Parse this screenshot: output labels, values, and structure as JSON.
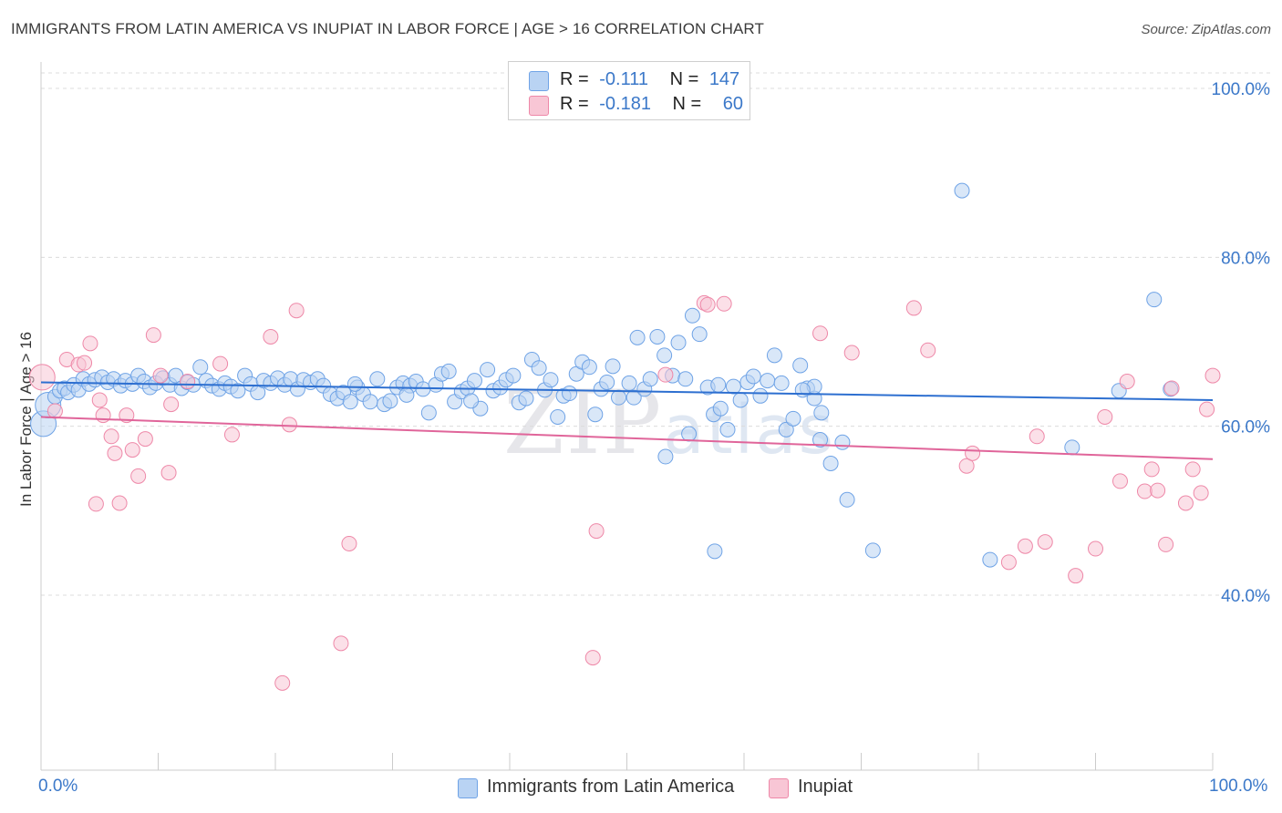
{
  "title": "IMMIGRANTS FROM LATIN AMERICA VS INUPIAT IN LABOR FORCE | AGE > 16 CORRELATION CHART",
  "source": "Source: ZipAtlas.com",
  "watermark": {
    "zip": "ZIP",
    "atlas": "atlas"
  },
  "legend": {
    "r_label": "R =",
    "n_label": "N =",
    "items": [
      {
        "name": "Immigrants from Latin America",
        "r": "-0.111",
        "n": "147",
        "color": "#6fa3e6",
        "fill": "#b9d3f3"
      },
      {
        "name": "Inupiat",
        "r": "-0.181",
        "n": "60",
        "color": "#ee88a8",
        "fill": "#f8c6d5"
      }
    ]
  },
  "chart_data": {
    "type": "scatter",
    "xlabel": "",
    "ylabel": "In Labor Force | Age > 16",
    "xlim": [
      0,
      100
    ],
    "ylim": [
      20,
      100
    ],
    "x_tick_labels": [
      "0.0%",
      "100.0%"
    ],
    "y_ticks": [
      {
        "value": 100,
        "label": "100.0%"
      },
      {
        "value": 80,
        "label": "80.0%"
      },
      {
        "value": 60,
        "label": "60.0%"
      },
      {
        "value": 40,
        "label": "40.0%"
      }
    ],
    "grid": true,
    "legend_position": "top-center",
    "series": [
      {
        "name": "Immigrants from Latin America",
        "color": "#6fa3e6",
        "trend": {
          "x": [
            0,
            100
          ],
          "y": [
            65.2,
            63.1
          ]
        },
        "points": [
          [
            0.2,
            60.3
          ],
          [
            0.6,
            62.5
          ],
          [
            1.2,
            63.5
          ],
          [
            1.6,
            64.2
          ],
          [
            2.0,
            64.5
          ],
          [
            2.3,
            64.0
          ],
          [
            2.8,
            64.9
          ],
          [
            3.2,
            64.3
          ],
          [
            3.6,
            65.6
          ],
          [
            4.1,
            65.0
          ],
          [
            4.6,
            65.5
          ],
          [
            5.2,
            65.8
          ],
          [
            5.7,
            65.2
          ],
          [
            6.2,
            65.6
          ],
          [
            6.8,
            64.8
          ],
          [
            7.2,
            65.4
          ],
          [
            7.8,
            65.0
          ],
          [
            8.3,
            66.0
          ],
          [
            8.8,
            65.3
          ],
          [
            9.3,
            64.6
          ],
          [
            9.8,
            65.1
          ],
          [
            10.4,
            65.7
          ],
          [
            11.0,
            64.9
          ],
          [
            11.5,
            66.0
          ],
          [
            12.0,
            64.5
          ],
          [
            12.5,
            65.2
          ],
          [
            13.0,
            64.9
          ],
          [
            13.6,
            67.0
          ],
          [
            14.1,
            65.4
          ],
          [
            14.6,
            64.8
          ],
          [
            15.2,
            64.4
          ],
          [
            15.7,
            65.1
          ],
          [
            16.2,
            64.7
          ],
          [
            16.8,
            64.2
          ],
          [
            17.4,
            66.0
          ],
          [
            17.9,
            65.0
          ],
          [
            18.5,
            64.0
          ],
          [
            19.0,
            65.4
          ],
          [
            19.6,
            65.1
          ],
          [
            20.2,
            65.7
          ],
          [
            20.8,
            64.9
          ],
          [
            21.3,
            65.6
          ],
          [
            21.9,
            64.4
          ],
          [
            22.4,
            65.5
          ],
          [
            23.0,
            65.2
          ],
          [
            23.6,
            65.6
          ],
          [
            24.1,
            64.8
          ],
          [
            24.7,
            63.8
          ],
          [
            25.3,
            63.3
          ],
          [
            25.8,
            64.0
          ],
          [
            26.4,
            62.9
          ],
          [
            27.0,
            64.6
          ],
          [
            27.5,
            63.8
          ],
          [
            28.1,
            62.9
          ],
          [
            28.7,
            65.6
          ],
          [
            29.3,
            62.6
          ],
          [
            29.8,
            63.0
          ],
          [
            30.4,
            64.6
          ],
          [
            30.9,
            65.1
          ],
          [
            31.5,
            64.8
          ],
          [
            32.0,
            65.3
          ],
          [
            32.6,
            64.4
          ],
          [
            33.1,
            61.6
          ],
          [
            33.7,
            64.9
          ],
          [
            34.2,
            66.2
          ],
          [
            34.8,
            66.5
          ],
          [
            35.3,
            62.9
          ],
          [
            35.9,
            64.1
          ],
          [
            36.4,
            64.5
          ],
          [
            37.0,
            65.4
          ],
          [
            37.5,
            62.1
          ],
          [
            38.1,
            66.7
          ],
          [
            38.6,
            64.2
          ],
          [
            39.2,
            64.6
          ],
          [
            39.7,
            65.5
          ],
          [
            40.3,
            66.0
          ],
          [
            40.8,
            62.8
          ],
          [
            41.4,
            63.3
          ],
          [
            41.9,
            67.9
          ],
          [
            42.5,
            66.9
          ],
          [
            43.0,
            64.3
          ],
          [
            43.5,
            65.5
          ],
          [
            44.1,
            61.1
          ],
          [
            44.6,
            63.6
          ],
          [
            45.1,
            63.9
          ],
          [
            45.7,
            66.2
          ],
          [
            46.2,
            67.6
          ],
          [
            46.8,
            67.0
          ],
          [
            47.3,
            61.4
          ],
          [
            47.8,
            64.4
          ],
          [
            48.3,
            65.2
          ],
          [
            48.8,
            67.1
          ],
          [
            49.3,
            63.4
          ],
          [
            50.2,
            65.1
          ],
          [
            50.6,
            63.4
          ],
          [
            50.9,
            70.5
          ],
          [
            51.5,
            64.4
          ],
          [
            52.0,
            65.6
          ],
          [
            52.6,
            70.6
          ],
          [
            53.2,
            68.4
          ],
          [
            53.9,
            66.0
          ],
          [
            54.4,
            69.9
          ],
          [
            55.0,
            65.6
          ],
          [
            55.6,
            73.1
          ],
          [
            56.2,
            70.9
          ],
          [
            55.3,
            59.1
          ],
          [
            56.9,
            64.6
          ],
          [
            57.4,
            61.4
          ],
          [
            58.0,
            62.1
          ],
          [
            58.6,
            59.6
          ],
          [
            59.1,
            64.7
          ],
          [
            59.7,
            63.1
          ],
          [
            60.3,
            65.2
          ],
          [
            60.8,
            65.9
          ],
          [
            61.4,
            63.6
          ],
          [
            62.0,
            65.4
          ],
          [
            62.6,
            68.4
          ],
          [
            63.2,
            65.1
          ],
          [
            63.6,
            59.6
          ],
          [
            64.2,
            60.9
          ],
          [
            64.8,
            67.2
          ],
          [
            65.4,
            64.5
          ],
          [
            66.0,
            63.3
          ],
          [
            66.6,
            61.6
          ],
          [
            66.0,
            64.7
          ],
          [
            53.3,
            56.4
          ],
          [
            57.5,
            45.2
          ],
          [
            65.0,
            64.3
          ],
          [
            66.5,
            58.4
          ],
          [
            67.4,
            55.6
          ],
          [
            68.4,
            58.1
          ],
          [
            68.8,
            51.3
          ],
          [
            78.6,
            87.9
          ],
          [
            95.0,
            75.0
          ],
          [
            71.0,
            45.3
          ],
          [
            81.0,
            44.2
          ],
          [
            88.0,
            57.5
          ],
          [
            92.0,
            64.2
          ],
          [
            96.4,
            64.4
          ],
          [
            57.8,
            64.9
          ],
          [
            26.8,
            65.0
          ],
          [
            31.2,
            63.7
          ],
          [
            36.7,
            63.0
          ]
        ]
      },
      {
        "name": "Inupiat",
        "color": "#ee88a8",
        "trend": {
          "x": [
            0,
            100
          ],
          "y": [
            61.1,
            56.1
          ]
        },
        "points": [
          [
            0.1,
            65.8
          ],
          [
            1.2,
            61.8
          ],
          [
            2.2,
            67.9
          ],
          [
            3.2,
            67.3
          ],
          [
            3.7,
            67.5
          ],
          [
            4.2,
            69.8
          ],
          [
            4.7,
            50.8
          ],
          [
            5.3,
            61.3
          ],
          [
            6.0,
            58.8
          ],
          [
            6.3,
            56.8
          ],
          [
            6.7,
            50.9
          ],
          [
            7.3,
            61.3
          ],
          [
            7.8,
            57.2
          ],
          [
            8.3,
            54.1
          ],
          [
            8.9,
            58.5
          ],
          [
            9.6,
            70.8
          ],
          [
            10.2,
            66.0
          ],
          [
            10.9,
            54.5
          ],
          [
            11.1,
            62.6
          ],
          [
            15.3,
            67.4
          ],
          [
            16.3,
            59.0
          ],
          [
            19.6,
            70.6
          ],
          [
            20.6,
            29.6
          ],
          [
            21.2,
            60.2
          ],
          [
            21.8,
            73.7
          ],
          [
            25.6,
            34.3
          ],
          [
            26.3,
            46.1
          ],
          [
            47.4,
            47.6
          ],
          [
            53.3,
            66.1
          ],
          [
            56.6,
            74.6
          ],
          [
            56.9,
            74.4
          ],
          [
            58.3,
            74.5
          ],
          [
            47.1,
            32.6
          ],
          [
            66.5,
            71.0
          ],
          [
            69.2,
            68.7
          ],
          [
            74.5,
            74.0
          ],
          [
            75.7,
            69.0
          ],
          [
            79.0,
            55.3
          ],
          [
            79.5,
            56.8
          ],
          [
            82.6,
            43.9
          ],
          [
            85.0,
            58.8
          ],
          [
            85.7,
            46.3
          ],
          [
            88.3,
            42.3
          ],
          [
            90.0,
            45.5
          ],
          [
            90.8,
            61.1
          ],
          [
            92.1,
            53.5
          ],
          [
            92.7,
            65.3
          ],
          [
            94.2,
            52.3
          ],
          [
            94.8,
            54.9
          ],
          [
            95.3,
            52.4
          ],
          [
            96.0,
            46.0
          ],
          [
            96.5,
            64.5
          ],
          [
            97.7,
            50.9
          ],
          [
            98.3,
            54.9
          ],
          [
            99.0,
            52.1
          ],
          [
            99.5,
            62.0
          ],
          [
            100.0,
            66.0
          ],
          [
            84.0,
            45.8
          ],
          [
            12.5,
            65.3
          ],
          [
            5.0,
            63.1
          ]
        ]
      }
    ]
  }
}
